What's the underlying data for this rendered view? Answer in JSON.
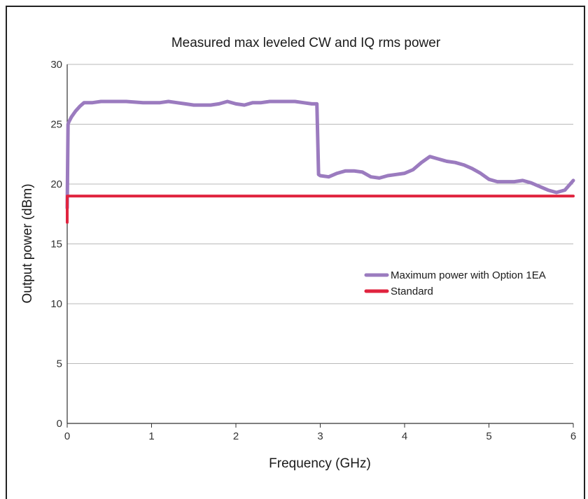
{
  "chart_data": {
    "type": "line",
    "title": "Measured max leveled CW and IQ rms power",
    "xlabel": "Frequency (GHz)",
    "ylabel": "Output power (dBm)",
    "xlim": [
      0,
      6
    ],
    "ylim": [
      0,
      30
    ],
    "xticks": [
      "0",
      "1",
      "2",
      "3",
      "4",
      "5",
      "6"
    ],
    "yticks": [
      "0",
      "5",
      "10",
      "15",
      "20",
      "25",
      "30"
    ],
    "grid": "horizontal",
    "legend_position": "right-middle",
    "series": [
      {
        "name": "Maximum power with Option 1EA",
        "color": "#9b7bbf",
        "x": [
          0.0,
          0.01,
          0.02,
          0.05,
          0.08,
          0.1,
          0.15,
          0.2,
          0.3,
          0.4,
          0.5,
          0.7,
          0.9,
          1.0,
          1.1,
          1.2,
          1.3,
          1.4,
          1.5,
          1.6,
          1.7,
          1.8,
          1.9,
          2.0,
          2.1,
          2.2,
          2.3,
          2.4,
          2.5,
          2.6,
          2.7,
          2.8,
          2.9,
          2.96,
          2.98,
          3.0,
          3.1,
          3.2,
          3.3,
          3.4,
          3.5,
          3.6,
          3.7,
          3.8,
          3.9,
          4.0,
          4.1,
          4.2,
          4.3,
          4.4,
          4.5,
          4.6,
          4.7,
          4.8,
          4.9,
          5.0,
          5.1,
          5.2,
          5.3,
          5.4,
          5.5,
          5.6,
          5.7,
          5.8,
          5.9,
          6.0
        ],
        "y": [
          18.0,
          25.0,
          25.2,
          25.6,
          25.9,
          26.1,
          26.5,
          26.8,
          26.8,
          26.9,
          26.9,
          26.9,
          26.8,
          26.8,
          26.8,
          26.9,
          26.8,
          26.7,
          26.6,
          26.6,
          26.6,
          26.7,
          26.9,
          26.7,
          26.6,
          26.8,
          26.8,
          26.9,
          26.9,
          26.9,
          26.9,
          26.8,
          26.7,
          26.7,
          20.8,
          20.7,
          20.6,
          20.9,
          21.1,
          21.1,
          21.0,
          20.6,
          20.5,
          20.7,
          20.8,
          20.9,
          21.2,
          21.8,
          22.3,
          22.1,
          21.9,
          21.8,
          21.6,
          21.3,
          20.9,
          20.4,
          20.2,
          20.2,
          20.2,
          20.3,
          20.1,
          19.8,
          19.5,
          19.3,
          19.5,
          20.3
        ]
      },
      {
        "name": "Standard",
        "color": "#e0243f",
        "x": [
          0.0,
          0.0,
          0.02,
          6.0
        ],
        "y": [
          16.8,
          19.0,
          19.0,
          19.0
        ]
      }
    ]
  }
}
